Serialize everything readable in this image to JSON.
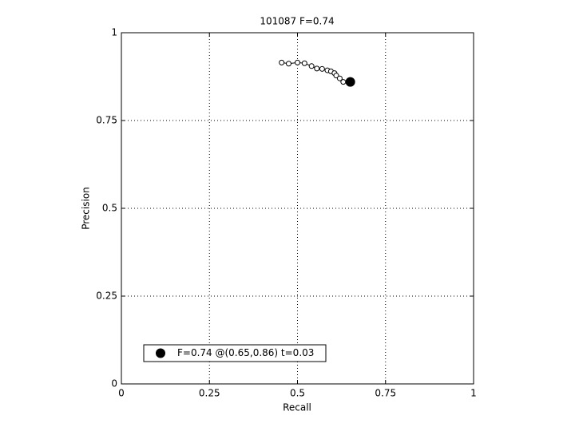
{
  "chart_data": {
    "type": "line",
    "title": "101087 F=0.74",
    "x_label": "Recall",
    "y_label": "Precision",
    "series": [
      {
        "color": "#000000",
        "x": [
          0.455,
          0.475,
          0.5,
          0.52,
          0.54,
          0.555,
          0.57,
          0.585,
          0.595,
          0.605,
          0.61,
          0.62,
          0.63
        ],
        "values": [
          0.915,
          0.912,
          0.915,
          0.913,
          0.905,
          0.898,
          0.897,
          0.893,
          0.89,
          0.885,
          0.878,
          0.87,
          0.86
        ]
      },
      {
        "name": "F=0.74 @(0.65,0.86) t=0.03",
        "color": "#000000",
        "x": [
          0.65
        ],
        "values": [
          0.86
        ]
      }
    ],
    "xlim": [
      0,
      1
    ],
    "ylim": [
      0,
      1
    ],
    "xticks": [
      0,
      0.25,
      0.5,
      0.75,
      1
    ],
    "yticks": [
      0,
      0.25,
      0.5,
      0.75,
      1
    ],
    "grid": true,
    "legend": "lower left"
  }
}
